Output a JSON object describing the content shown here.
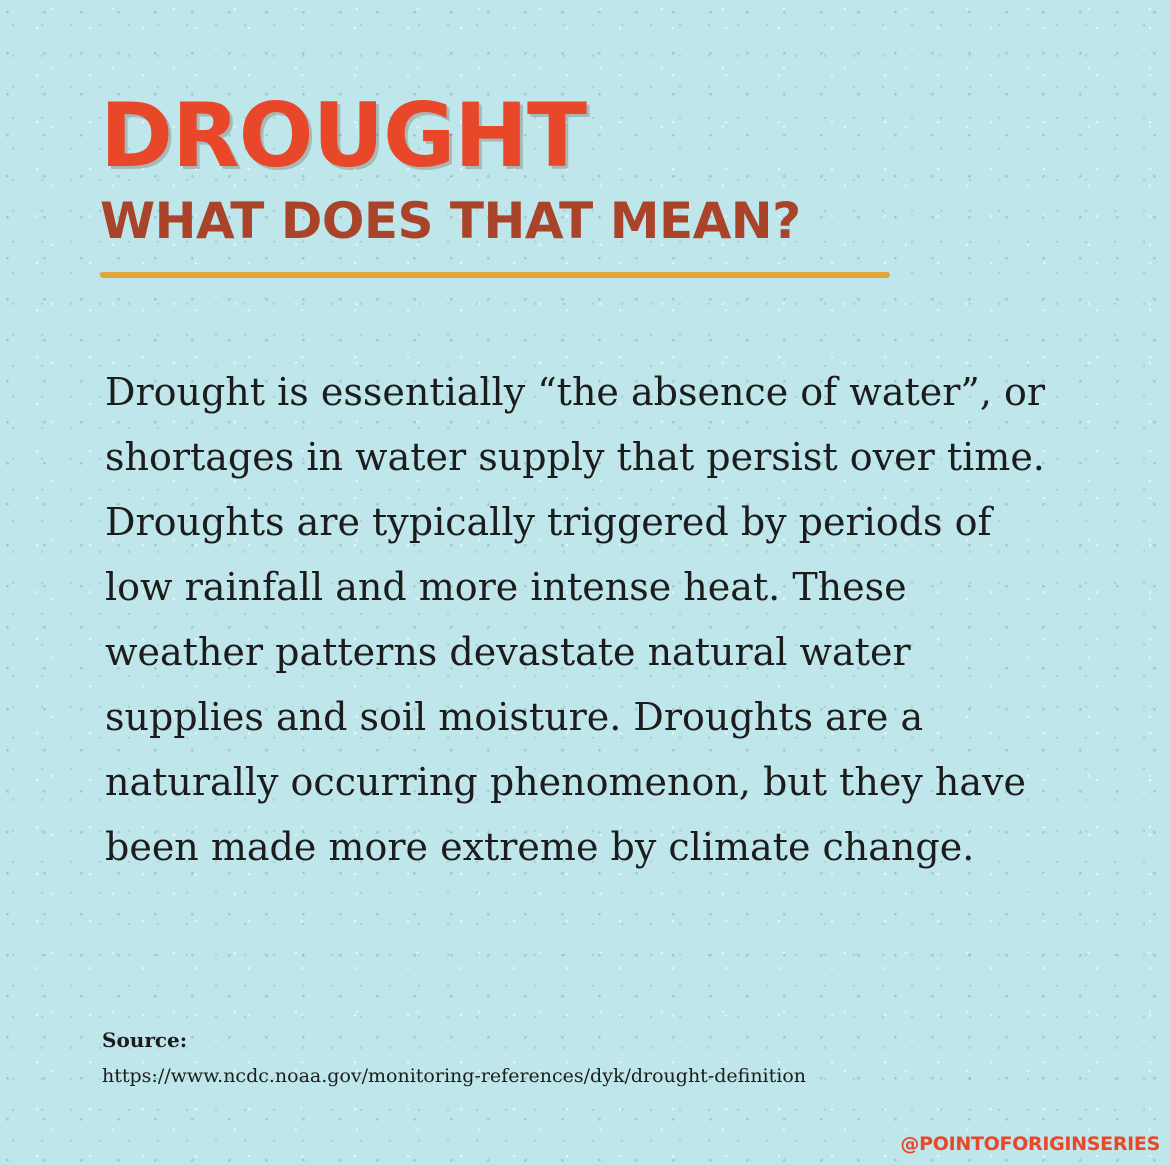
{
  "header": {
    "title": "DROUGHT",
    "subtitle": "WHAT DOES THAT MEAN?"
  },
  "body": {
    "paragraph": "Drought is essentially “the absence of water”, or shortages in water supply that persist over time. Droughts are typically triggered by periods of low rainfall and more intense heat. These weather patterns devastate natural water supplies and soil moisture. Droughts are a naturally occurring phenomenon, but they have been made more extreme by climate change."
  },
  "source": {
    "label": "Source:",
    "url": "https://www.ncdc.noaa.gov/monitoring-references/dyk/drought-definition"
  },
  "footer": {
    "handle": "@POINTOFORIGINSERIES"
  },
  "colors": {
    "background": "#bfe6ea",
    "title": "#e8472a",
    "subtitle": "#a9442a",
    "rule": "#dfa63a",
    "text": "#1c1c1c"
  }
}
